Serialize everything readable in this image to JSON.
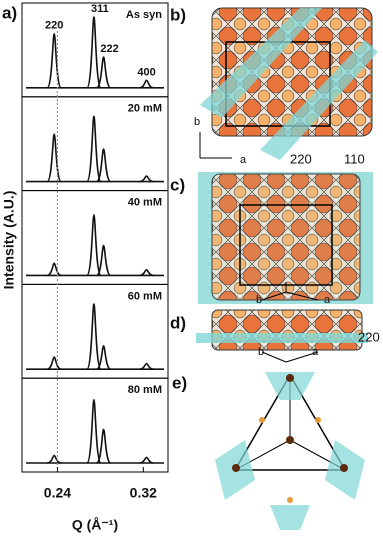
{
  "chart_data": {
    "type": "peaks",
    "panel_label": "a)",
    "x_label": "Q (Å⁻¹)",
    "y_label": "Intensity (A.U.)",
    "xlim": [
      0.207,
      0.343
    ],
    "xticks": [
      0.24,
      0.32
    ],
    "ylim": [
      0,
      90
    ],
    "peak_labels": [
      "220",
      "311",
      "222",
      "400"
    ],
    "x": [
      0.237,
      0.274,
      0.283,
      0.323
    ],
    "reference_line": {
      "x": 0.24,
      "color": "#e07b39"
    },
    "series": [
      {
        "name": "As syn",
        "color": "#111111",
        "values": [
          58,
          76,
          33,
          8
        ]
      },
      {
        "name": "20 mM",
        "color": "#111111",
        "values": [
          51,
          70,
          35,
          6
        ]
      },
      {
        "name": "40 mM",
        "color": "#111111",
        "values": [
          13,
          65,
          32,
          6
        ]
      },
      {
        "name": "60 mM",
        "color": "#111111",
        "values": [
          13,
          70,
          25,
          6
        ]
      },
      {
        "name": "80 mM",
        "color": "#111111",
        "values": [
          8,
          68,
          36,
          6
        ]
      }
    ]
  },
  "structure_panels": [
    {
      "label": "b)",
      "texts": [
        "b",
        "a",
        "220",
        "110"
      ]
    },
    {
      "label": "c)",
      "texts": [
        "b",
        "a"
      ]
    },
    {
      "label": "d)",
      "texts": [
        "b",
        "a",
        "220"
      ]
    },
    {
      "label": "e)"
    }
  ]
}
